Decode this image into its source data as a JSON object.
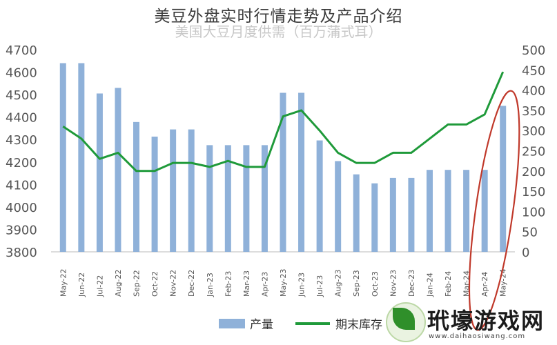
{
  "overlay_title": "美豆外盘实时行情走势及产品介绍",
  "chart_data": {
    "type": "bar",
    "title": "美国大豆月度供需（百万蒲式耳）",
    "categories": [
      "May-22",
      "Jun-22",
      "Jul-22",
      "Aug-22",
      "Sep-22",
      "Oct-22",
      "Nov-22",
      "Dec-22",
      "Jan-23",
      "Feb-23",
      "Mar-23",
      "Apr-23",
      "May-23",
      "Jun-23",
      "Jul-23",
      "Aug-23",
      "Sep-23",
      "Oct-23",
      "Nov-23",
      "Dec-23",
      "Jan-24",
      "Feb-24",
      "Mar-24",
      "Apr-24",
      "May-24"
    ],
    "left_axis": {
      "ylim": [
        3800,
        4700
      ],
      "ticks": [
        3800,
        3900,
        4000,
        4100,
        4200,
        4300,
        4400,
        4500,
        4600,
        4700
      ]
    },
    "right_axis": {
      "ylim": [
        0,
        500
      ],
      "ticks": [
        0,
        50,
        100,
        150,
        200,
        250,
        300,
        350,
        400,
        450,
        500
      ]
    },
    "series": [
      {
        "name": "产量",
        "type": "bar",
        "axis": "left",
        "color": "#8fb1d9",
        "values": [
          4640,
          4640,
          4505,
          4530,
          4378,
          4313,
          4345,
          4345,
          4275,
          4275,
          4275,
          4275,
          4508,
          4508,
          4296,
          4204,
          4145,
          4105,
          4129,
          4129,
          4165,
          4165,
          4165,
          4165,
          4450
        ]
      },
      {
        "name": "期末库存",
        "type": "line",
        "axis": "right",
        "color": "#1f9a3a",
        "values": [
          310,
          280,
          230,
          245,
          200,
          200,
          220,
          220,
          210,
          225,
          210,
          210,
          335,
          350,
          300,
          245,
          220,
          220,
          245,
          245,
          280,
          315,
          315,
          340,
          445
        ]
      }
    ],
    "legend": "bottom",
    "grid": false
  },
  "annotation": {
    "shape": "ellipse",
    "color": "#c0392b"
  },
  "watermark": {
    "text": "玳壕游戏网",
    "url": "www.daihaosiwang.com"
  }
}
